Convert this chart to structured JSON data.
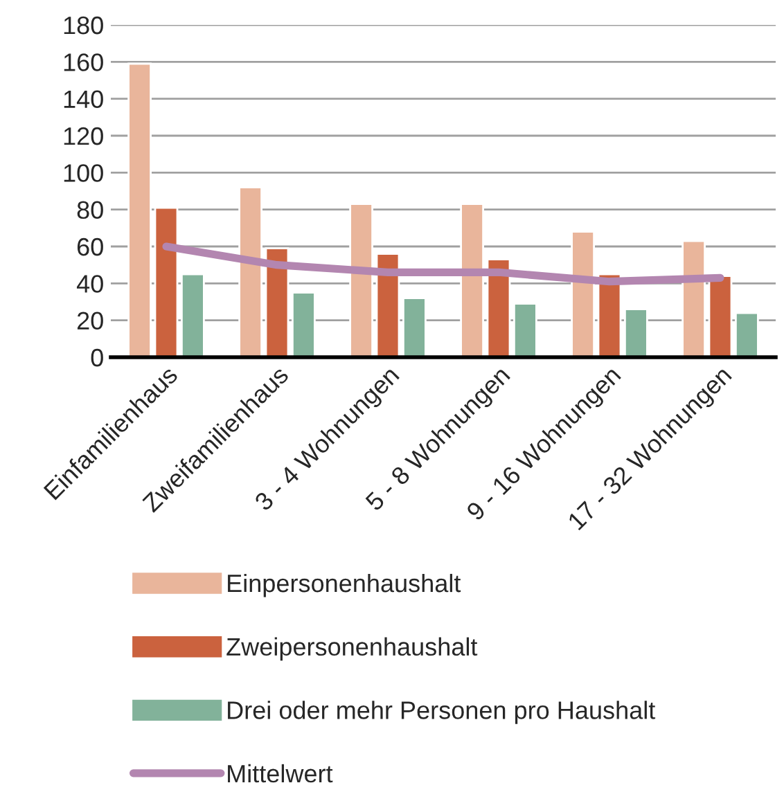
{
  "chart_data": {
    "type": "bar",
    "categories": [
      "Einfamilienhaus",
      "Zweifamilienhaus",
      "3 - 4 Wohnungen",
      "5 - 8 Wohnungen",
      "9 - 16 Wohnungen",
      "17 - 32 Wohnungen"
    ],
    "series": [
      {
        "name": "Einpersonenhaushalt",
        "color": "#e9b59b",
        "values": [
          159,
          92,
          83,
          83,
          68,
          63
        ]
      },
      {
        "name": "Zweipersonenhaushalt",
        "color": "#cb623e",
        "values": [
          81,
          59,
          56,
          53,
          45,
          44
        ]
      },
      {
        "name": "Drei oder mehr Personen pro Haushalt",
        "color": "#82b29a",
        "values": [
          45,
          35,
          32,
          29,
          26,
          24
        ]
      },
      {
        "name": "Mittelwert",
        "color": "#b386b0",
        "type": "line",
        "values": [
          60,
          50,
          46,
          46,
          41,
          43
        ]
      }
    ],
    "ylim": [
      0,
      180
    ],
    "yticks": [
      0,
      20,
      40,
      60,
      80,
      100,
      120,
      140,
      160,
      180
    ],
    "grid": "y",
    "legend": "bottom"
  }
}
